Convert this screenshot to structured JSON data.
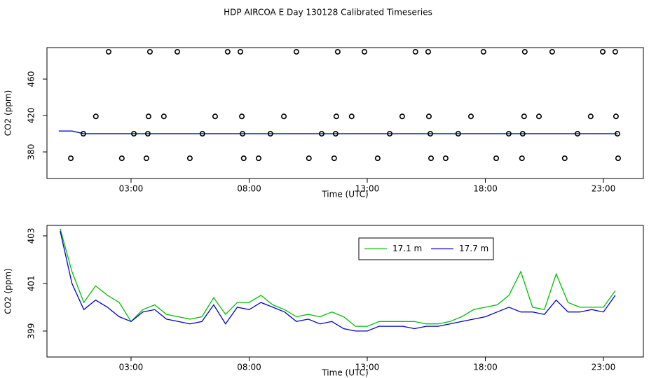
{
  "chart_data": [
    {
      "type": "scatter",
      "title": "HDP AIRCOA E  Day 130128  Calibrated Timeseries",
      "xlabel": "Time (UTC)",
      "ylabel": "CO2 (ppm)",
      "x": [
        2.05,
        3.8,
        4.96,
        7.09,
        7.63,
        10.0,
        11.75,
        12.88,
        15.04,
        15.58,
        17.92,
        19.67,
        20.83,
        22.97,
        23.5,
        1.51,
        3.74,
        4.39,
        6.56,
        7.69,
        9.47,
        11.69,
        12.34,
        14.48,
        15.61,
        17.39,
        19.64,
        20.27,
        22.46,
        23.53,
        0.98,
        3.12,
        3.71,
        6.02,
        7.72,
        8.9,
        11.07,
        11.66,
        13.95,
        15.67,
        16.85,
        18.99,
        19.58,
        21.9,
        23.59,
        0.45,
        2.61,
        3.65,
        5.49,
        7.77,
        8.4,
        10.53,
        11.6,
        13.44,
        15.7,
        16.32,
        18.46,
        19.55,
        21.36,
        23.62
      ],
      "values": [
        490,
        490,
        490,
        490,
        490,
        490,
        490,
        490,
        490,
        490,
        490,
        490,
        490,
        490,
        490,
        419,
        419,
        419,
        419,
        419,
        419,
        419,
        419,
        419,
        419,
        419,
        419,
        419,
        419,
        419,
        400,
        400,
        400,
        400,
        400,
        400,
        400,
        400,
        400,
        400,
        400,
        400,
        400,
        400,
        400,
        373,
        373,
        373,
        373,
        373,
        373,
        373,
        373,
        373,
        373,
        373,
        373,
        373,
        373,
        373
      ],
      "color": "#000000",
      "series": [
        {
          "color": "#00c000",
          "x": [
            -0.06,
            0.5,
            1,
            2,
            4,
            8,
            12,
            16,
            20,
            23.6
          ],
          "values": [
            403,
            403,
            400,
            400,
            400,
            400,
            400,
            400,
            400,
            400
          ]
        },
        {
          "color": "#0000cc",
          "x": [
            -0.06,
            0.5,
            1,
            2,
            4,
            8,
            12,
            16,
            20,
            23.6
          ],
          "values": [
            403,
            403,
            400,
            400,
            400,
            400,
            400,
            400,
            400,
            400
          ]
        }
      ],
      "xlim": [
        -0.56,
        24.69
      ],
      "xticks": [
        {
          "value": 3,
          "label": "03:00"
        },
        {
          "value": 8,
          "label": "08:00"
        },
        {
          "value": 13,
          "label": "13:00"
        },
        {
          "value": 18,
          "label": "18:00"
        },
        {
          "value": 23,
          "label": "23:00"
        }
      ],
      "ylim": [
        350.8,
        494.6
      ],
      "yticks": [
        380,
        420,
        460
      ]
    },
    {
      "type": "line",
      "xlabel": "Time (UTC)",
      "ylabel": "CO2 (ppm)",
      "x": [
        0,
        0.5,
        1,
        1.5,
        2,
        2.5,
        3,
        3.5,
        4,
        4.5,
        5,
        5.5,
        6,
        6.5,
        7,
        7.5,
        8,
        8.5,
        9,
        9.5,
        10,
        10.5,
        11,
        11.5,
        12,
        12.5,
        13,
        13.5,
        14,
        14.5,
        15,
        15.5,
        16,
        16.5,
        17,
        17.5,
        18,
        18.5,
        19,
        19.5,
        20,
        20.5,
        21,
        21.5,
        22,
        22.5,
        23,
        23.5
      ],
      "series": [
        {
          "name": "17.1 m",
          "color": "#00c000",
          "values": [
            403.3,
            401.5,
            400.2,
            400.9,
            400.5,
            400.2,
            399.4,
            399.9,
            400.1,
            399.7,
            399.6,
            399.5,
            399.6,
            400.4,
            399.7,
            400.2,
            400.2,
            400.5,
            400.1,
            399.9,
            399.6,
            399.7,
            399.6,
            399.8,
            399.6,
            399.2,
            399.2,
            399.4,
            399.4,
            399.4,
            399.4,
            399.3,
            399.3,
            399.4,
            399.6,
            399.9,
            400.0,
            400.1,
            400.5,
            401.5,
            400.0,
            399.9,
            401.4,
            400.2,
            400.0,
            400.0,
            400.0,
            400.7
          ]
        },
        {
          "name": "17.7 m",
          "color": "#0000cc",
          "values": [
            403.2,
            401.0,
            399.9,
            400.3,
            400.0,
            399.6,
            399.4,
            399.8,
            399.9,
            399.5,
            399.4,
            399.3,
            399.4,
            400.1,
            399.3,
            400.0,
            399.9,
            400.2,
            400.0,
            399.8,
            399.4,
            399.5,
            399.3,
            399.4,
            399.1,
            399.0,
            399.0,
            399.2,
            399.2,
            399.2,
            399.1,
            399.2,
            399.2,
            399.3,
            399.4,
            399.5,
            399.6,
            399.8,
            400.0,
            399.8,
            399.8,
            399.7,
            400.3,
            399.8,
            399.8,
            399.9,
            399.8,
            400.5
          ]
        }
      ],
      "legend": "top",
      "xlim": [
        -0.56,
        24.69
      ],
      "xticks": [
        {
          "value": 3,
          "label": "03:00"
        },
        {
          "value": 8,
          "label": "08:00"
        },
        {
          "value": 13,
          "label": "13:00"
        },
        {
          "value": 18,
          "label": "18:00"
        },
        {
          "value": 23,
          "label": "23:00"
        }
      ],
      "ylim": [
        397.91,
        403.44
      ],
      "yticks": [
        399,
        401,
        403
      ]
    }
  ]
}
